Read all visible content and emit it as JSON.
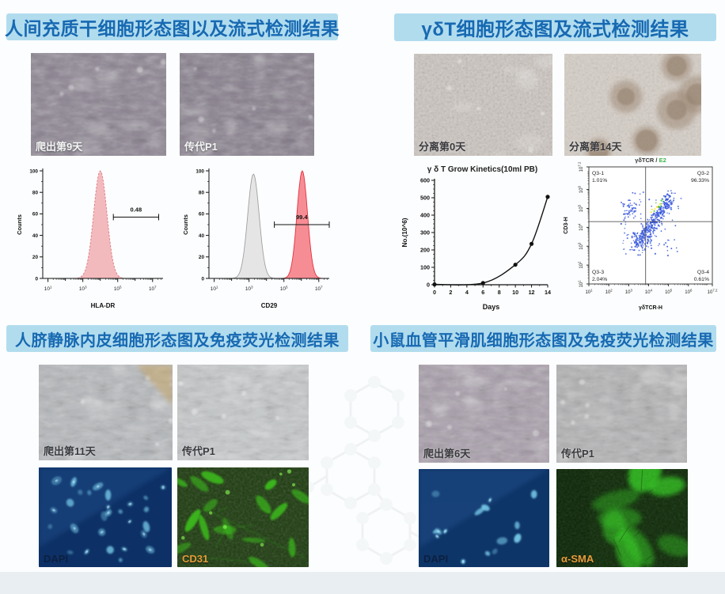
{
  "panels": {
    "msc": {
      "title": "人间充质干细胞形态图以及流式检测结果",
      "images": [
        {
          "label": "爬出第9天",
          "kind": "phase",
          "tint": "#8b8391",
          "label_color": "light"
        },
        {
          "label": "传代P1",
          "kind": "phase",
          "tint": "#867e8c",
          "label_color": "light"
        }
      ]
    },
    "gdt": {
      "title": "γδT细胞形态图及流式检测结果",
      "images": [
        {
          "label": "分离第0天",
          "kind": "grain",
          "tint": "#cdc6c0",
          "label_color": "dark"
        },
        {
          "label": "分离第14天",
          "kind": "colonies",
          "tint": "#d6cfc7",
          "label_color": "dark"
        }
      ]
    },
    "huvec": {
      "title": "人脐静脉内皮细胞形态图及免疫荧光检测结果",
      "images": [
        {
          "label": "爬出第11天",
          "kind": "phase",
          "tint": "#b6b9bc",
          "label_color": "dark",
          "corner": "#c9a96a"
        },
        {
          "label": "传代P1",
          "kind": "phase",
          "tint": "#c6c9cb",
          "label_color": "dark"
        },
        {
          "label": "DAPI",
          "kind": "dapi",
          "tint": "#0d3166",
          "label_color": "navy",
          "density": 28
        },
        {
          "label": "CD31",
          "kind": "cd31",
          "tint": "#1c3a0e",
          "label_color": "orange"
        }
      ]
    },
    "smc": {
      "title": "小鼠血管平滑肌细胞形态图及免疫荧光检测结果",
      "images": [
        {
          "label": "爬出第6天",
          "kind": "phase",
          "tint": "#a89eab",
          "label_color": "dark"
        },
        {
          "label": "传代P1",
          "kind": "phase",
          "tint": "#b3b3b5",
          "label_color": "dark"
        },
        {
          "label": "DAPI",
          "kind": "dapi",
          "tint": "#0e3568",
          "label_color": "navy",
          "density": 15
        },
        {
          "label": "α-SMA",
          "kind": "asma",
          "tint": "#0e2a08",
          "label_color": "orange"
        }
      ]
    }
  },
  "chart_data": [
    {
      "type": "histogram",
      "id": "hla",
      "xlabel": "HLA-DR",
      "ylabel": "Counts",
      "ylim": [
        0,
        100
      ],
      "yticks": [
        0,
        20,
        40,
        60,
        80,
        100
      ],
      "xlog_range": [
        0.7,
        7.6
      ],
      "xticks_exp": [
        1,
        3,
        5,
        7
      ],
      "peaks": [
        {
          "center": 4.0,
          "sigma": 0.38,
          "height": 100,
          "fill": "#f2b4b9",
          "stroke": "#e0767c",
          "dashed": true
        }
      ],
      "gate": {
        "from": 4.75,
        "to": 7.35,
        "y": 57,
        "label": "0.48"
      }
    },
    {
      "type": "histogram",
      "id": "cd29",
      "xlabel": "CD29",
      "ylabel": "Counts",
      "ylim": [
        0,
        100
      ],
      "yticks": [
        0,
        20,
        40,
        60,
        80,
        100
      ],
      "xlog_range": [
        0.7,
        7.6
      ],
      "xticks_exp": [
        1,
        3,
        5,
        7
      ],
      "peaks": [
        {
          "center": 3.25,
          "sigma": 0.33,
          "height": 97,
          "fill": "#e3e3e3",
          "stroke": "#a0a0a0",
          "dashed": false
        },
        {
          "center": 6.05,
          "sigma": 0.3,
          "height": 100,
          "fill": "#f5838c",
          "stroke": "#e5303d",
          "dashed": false
        }
      ],
      "gate": {
        "from": 4.45,
        "to": 7.6,
        "y": 50,
        "label": "99.4"
      }
    },
    {
      "type": "line",
      "id": "kinetics",
      "title": "γ δ  T Grow Kinetics(10ml PB)",
      "xlabel": "Days",
      "ylabel": "No.(10^6)",
      "x": [
        0,
        6,
        10,
        12,
        14
      ],
      "y": [
        2,
        10,
        115,
        235,
        505
      ],
      "xticks": [
        0,
        2,
        4,
        6,
        8,
        10,
        12,
        14
      ],
      "yticks": [
        0,
        100,
        200,
        300,
        400,
        500,
        600
      ],
      "xlim": [
        0,
        14
      ],
      "ylim": [
        0,
        600
      ]
    },
    {
      "type": "scatter_flow",
      "id": "tcr",
      "title_main": "γδTCR",
      "title_sep": " / ",
      "title_accent": "E2",
      "title_accent_color": "#3cb54a",
      "xlabel": "γδTCR-H",
      "ylabel": "CD3-H",
      "log_min": 1,
      "log_max": 7.2,
      "ticks_exp": [
        "1",
        "2",
        "3",
        "4",
        "5",
        "6",
        "7.2"
      ],
      "cross": {
        "x": 3.85,
        "y": 4.3
      },
      "quadrants": [
        {
          "name": "Q3-1",
          "value": "1.01%",
          "pos": "tl"
        },
        {
          "name": "Q3-2",
          "value": "96.33%",
          "pos": "tr"
        },
        {
          "name": "Q3-3",
          "value": "2.04%",
          "pos": "bl"
        },
        {
          "name": "Q3-4",
          "value": "0.61%",
          "pos": "br"
        }
      ]
    }
  ],
  "colors": {
    "banner_bg": "#b1dcee",
    "banner_text": "#1769b2",
    "footer_band": "#e9eef3",
    "gate_color": "#111111"
  }
}
